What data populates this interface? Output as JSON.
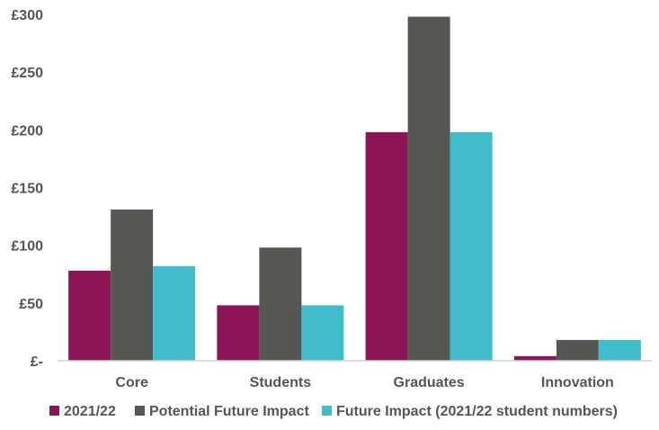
{
  "chart_data": {
    "type": "bar",
    "categories": [
      "Core",
      "Students",
      "Graduates",
      "Innovation"
    ],
    "series": [
      {
        "name": "2021/22",
        "color": "#8B1556",
        "values": [
          78,
          48,
          198,
          4
        ]
      },
      {
        "name": "Potential Future Impact",
        "color": "#555852",
        "values": [
          131,
          98,
          298,
          18
        ]
      },
      {
        "name": "Future Impact (2021/22 student numbers)",
        "color": "#40BCCB",
        "values": [
          82,
          48,
          198,
          18
        ]
      }
    ],
    "yticks": [
      {
        "value": 0,
        "label": "£-"
      },
      {
        "value": 50,
        "label": "£50"
      },
      {
        "value": 100,
        "label": "£100"
      },
      {
        "value": 150,
        "label": "£150"
      },
      {
        "value": 200,
        "label": "£200"
      },
      {
        "value": 250,
        "label": "£250"
      },
      {
        "value": 300,
        "label": "£300"
      }
    ],
    "ylim": [
      0,
      300
    ],
    "grid": false,
    "legend_position": "bottom"
  }
}
